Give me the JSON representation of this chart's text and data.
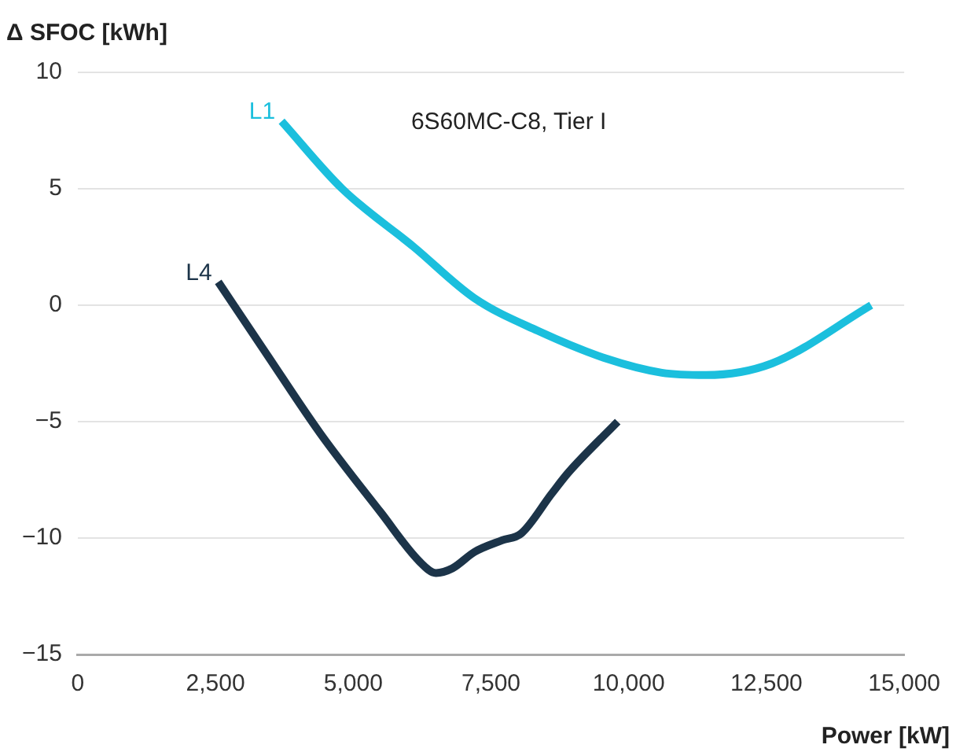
{
  "chart_data": {
    "type": "line",
    "ylabel": "Δ SFOC [kWh]",
    "xlabel": "Power [kW]",
    "annotations": [
      "6S60MC-C8, Tier I"
    ],
    "xlim": [
      0,
      15000
    ],
    "xticks": [
      {
        "value": 0,
        "label": "0"
      },
      {
        "value": 2500,
        "label": "2,500"
      },
      {
        "value": 5000,
        "label": "5,000"
      },
      {
        "value": 7500,
        "label": "7,500"
      },
      {
        "value": 10000,
        "label": "10,000"
      },
      {
        "value": 12500,
        "label": "12,500"
      },
      {
        "value": 15000,
        "label": "15,000"
      }
    ],
    "ylim": [
      -15,
      10
    ],
    "yticks": [
      {
        "value": -15,
        "label": "−15"
      },
      {
        "value": -10,
        "label": "−10"
      },
      {
        "value": -5,
        "label": "−5"
      },
      0,
      5,
      10
    ],
    "grid": "y",
    "legend": false,
    "marker": "none",
    "line_style": "solid",
    "series": [
      {
        "name": "L1",
        "color": "#1bbfdd",
        "x": [
          3700,
          4800,
          6100,
          7200,
          8350,
          9600,
          10600,
          11400,
          12600,
          14400
        ],
        "values": [
          7.9,
          5.0,
          2.5,
          0.3,
          -1.1,
          -2.3,
          -2.9,
          -3.0,
          -2.5,
          0
        ]
      },
      {
        "name": "L4",
        "color": "#1c3449",
        "x": [
          2550,
          3400,
          4400,
          5500,
          6200,
          6500,
          6800,
          7200,
          7700,
          8050,
          8600,
          8900,
          9800
        ],
        "values": [
          1.0,
          -2.0,
          -5.5,
          -8.9,
          -11.0,
          -11.5,
          -11.3,
          -10.6,
          -10.1,
          -9.8,
          -8.1,
          -7.2,
          -5.0
        ]
      }
    ]
  }
}
